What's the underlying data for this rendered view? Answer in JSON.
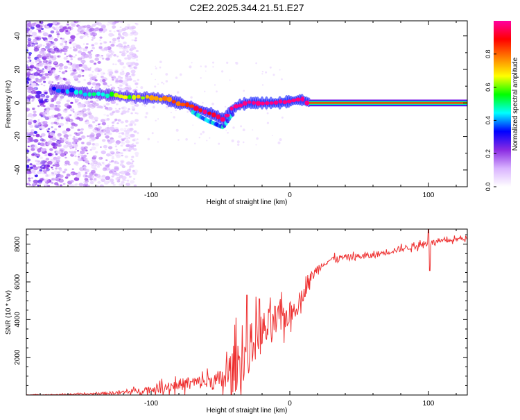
{
  "title": "C2E2.2025.344.21.51.E27",
  "chart_data": [
    {
      "type": "heatmap",
      "title": "C2E2.2025.344.21.51.E27",
      "xlabel": "Height of straight line (km)",
      "ylabel": "Frequency (Hz)",
      "xlim": [
        -190,
        128
      ],
      "ylim": [
        -50,
        49
      ],
      "xticks": [
        -100,
        0,
        100
      ],
      "yticks": [
        -40,
        -20,
        0,
        20,
        40
      ],
      "colorbar": {
        "label": "Normalized spectral amplitude",
        "range": [
          0,
          1
        ],
        "ticks": [
          0.0,
          0.2,
          0.4,
          0.6,
          0.8
        ],
        "tick_labels": [
          "0.0",
          "0.2",
          "0.4",
          "0.6",
          "0.8"
        ],
        "colors": [
          "#ffffff",
          "#d9b3ff",
          "#8a2be2",
          "#0000ff",
          "#00ffff",
          "#00ff00",
          "#ffff00",
          "#ff8000",
          "#ff0000",
          "#ff00a0"
        ]
      },
      "ridge": {
        "x": [
          -165,
          -150,
          -135,
          -120,
          -105,
          -95,
          -85,
          -75,
          -65,
          -55,
          -48,
          -42,
          -36,
          -28,
          -18,
          -8,
          0,
          8,
          15,
          128
        ],
        "y": [
          8,
          6,
          5,
          4,
          3,
          3,
          1,
          -1,
          -4,
          -7,
          -10,
          -4,
          -1,
          0,
          0,
          0,
          1,
          2,
          0,
          0
        ]
      }
    },
    {
      "type": "line",
      "xlabel": "Height of straight line (km)",
      "ylabel": "SNR (10 * v/v)",
      "xlim": [
        -190,
        128
      ],
      "ylim": [
        0,
        8800
      ],
      "xticks": [
        -100,
        0,
        100
      ],
      "yticks": [
        2000,
        4000,
        6000,
        8000
      ],
      "series": [
        {
          "name": "SNR",
          "color": "#ee3030",
          "x": [
            -190,
            -170,
            -150,
            -130,
            -115,
            -100,
            -90,
            -80,
            -70,
            -60,
            -50,
            -42,
            -35,
            -30,
            -25,
            -20,
            -15,
            -10,
            -5,
            0,
            5,
            10,
            15,
            20,
            25,
            30,
            40,
            50,
            60,
            70,
            80,
            90,
            100,
            110,
            120,
            128
          ],
          "y": [
            10,
            20,
            40,
            100,
            180,
            300,
            420,
            550,
            650,
            700,
            780,
            1200,
            1900,
            2400,
            3000,
            3300,
            3600,
            3900,
            4100,
            4300,
            4700,
            5400,
            6200,
            6700,
            7000,
            7200,
            7300,
            7350,
            7400,
            7600,
            7750,
            7900,
            8050,
            8150,
            8250,
            8350
          ],
          "noise_amplitude": [
            20,
            30,
            50,
            100,
            150,
            250,
            350,
            400,
            400,
            500,
            700,
            1600,
            1800,
            1500,
            1500,
            1400,
            1300,
            1200,
            1000,
            800,
            600,
            500,
            400,
            300,
            200,
            200,
            200,
            200,
            200,
            200,
            200,
            200,
            200,
            150,
            150,
            150
          ]
        }
      ]
    }
  ]
}
